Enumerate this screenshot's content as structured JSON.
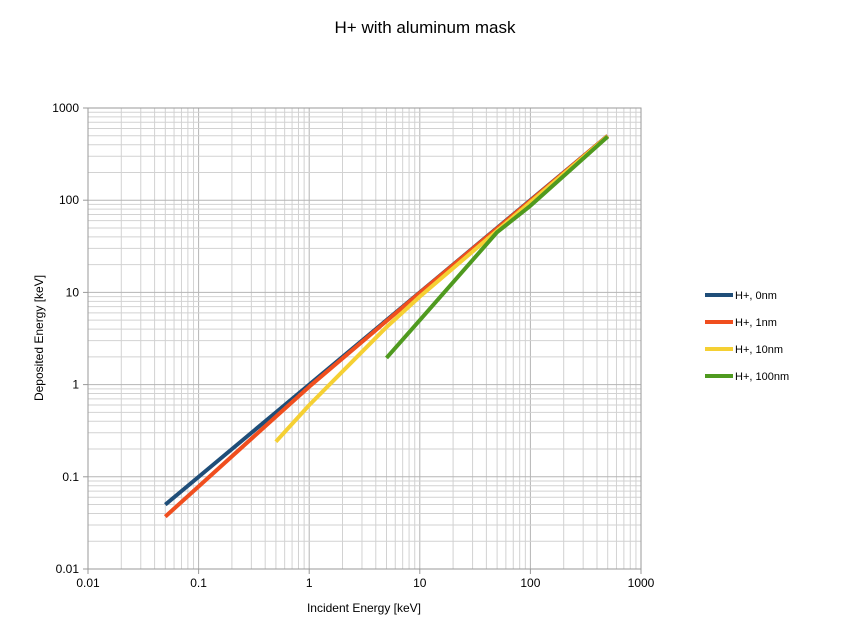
{
  "chart_data": {
    "type": "line",
    "title": "H+ with aluminum mask",
    "xlabel": "Incident Energy [keV]",
    "ylabel": "Deposited Energy [keV]",
    "x_scale": "log",
    "y_scale": "log",
    "xlim": [
      0.01,
      1000
    ],
    "ylim": [
      0.01,
      1000
    ],
    "x_tick_labels": [
      "0.01",
      "0.1",
      "1",
      "10",
      "100",
      "1000"
    ],
    "y_tick_labels": [
      "0.01",
      "0.1",
      "1",
      "10",
      "100",
      "1000"
    ],
    "grid": "major and minor",
    "legend_position": "right",
    "series": [
      {
        "name": "H+, 0nm",
        "color": "#1f4e79",
        "points": [
          [
            0.05,
            0.05
          ],
          [
            0.5,
            0.5
          ],
          [
            1,
            1
          ],
          [
            5,
            5
          ],
          [
            10,
            10
          ],
          [
            100,
            100
          ],
          [
            500,
            500
          ]
        ]
      },
      {
        "name": "H+, 1nm",
        "color": "#f04e1e",
        "points": [
          [
            0.05,
            0.037
          ],
          [
            0.5,
            0.45
          ],
          [
            1,
            0.95
          ],
          [
            5,
            4.9
          ],
          [
            10,
            9.9
          ],
          [
            100,
            99
          ],
          [
            500,
            499
          ]
        ]
      },
      {
        "name": "H+, 10nm",
        "color": "#f5d033",
        "points": [
          [
            0.5,
            0.24
          ],
          [
            1,
            0.6
          ],
          [
            5,
            4.2
          ],
          [
            10,
            9
          ],
          [
            100,
            95
          ],
          [
            500,
            495
          ]
        ]
      },
      {
        "name": "H+, 100nm",
        "color": "#4f9a1f",
        "points": [
          [
            5,
            1.95
          ],
          [
            10,
            5
          ],
          [
            50,
            45
          ],
          [
            100,
            87
          ],
          [
            500,
            490
          ]
        ]
      }
    ]
  }
}
